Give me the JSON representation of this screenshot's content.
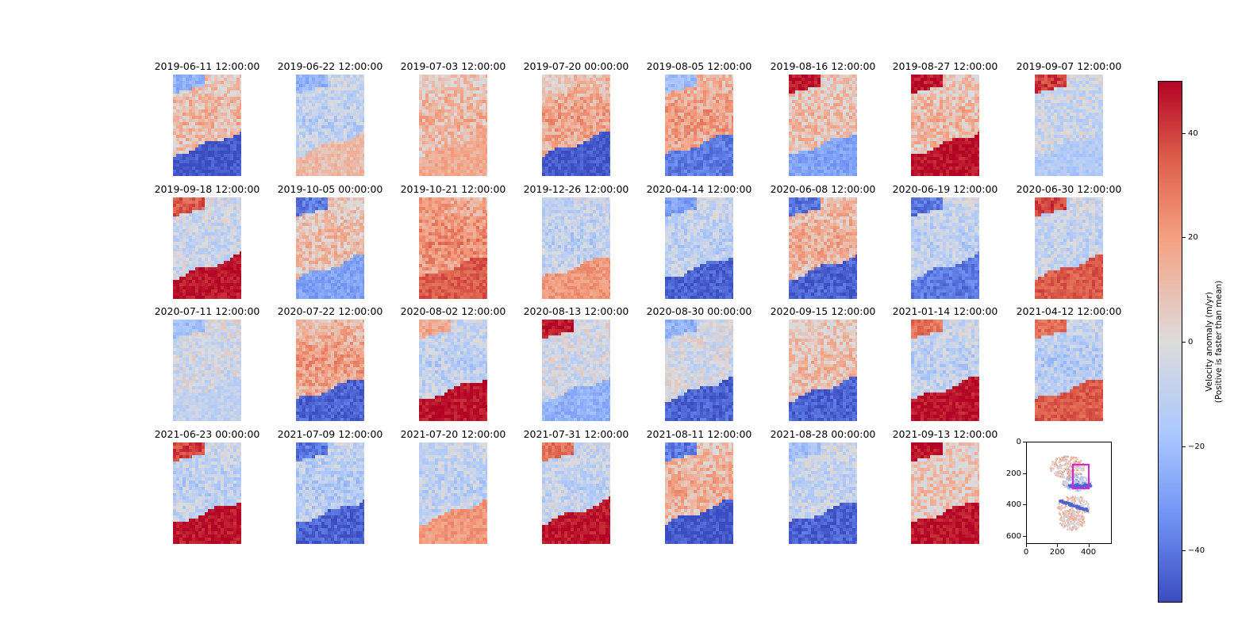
{
  "chart_data": {
    "type": "heatmap",
    "title": "",
    "panel_titles": [
      "2019-06-11 12:00:00",
      "2019-06-22 12:00:00",
      "2019-07-03 12:00:00",
      "2019-07-20 00:00:00",
      "2019-08-05 12:00:00",
      "2019-08-16 12:00:00",
      "2019-08-27 12:00:00",
      "2019-09-07 12:00:00",
      "2019-09-18 12:00:00",
      "2019-10-05 00:00:00",
      "2019-10-21 12:00:00",
      "2019-12-26 12:00:00",
      "2020-04-14 12:00:00",
      "2020-06-08 12:00:00",
      "2020-06-19 12:00:00",
      "2020-06-30 12:00:00",
      "2020-07-11 12:00:00",
      "2020-07-22 12:00:00",
      "2020-08-02 12:00:00",
      "2020-08-13 12:00:00",
      "2020-08-30 00:00:00",
      "2020-09-15 12:00:00",
      "2021-01-14 12:00:00",
      "2021-04-12 12:00:00",
      "2021-06-23 00:00:00",
      "2021-07-09 12:00:00",
      "2021-07-20 12:00:00",
      "2021-07-31 12:00:00",
      "2021-08-11 12:00:00",
      "2021-08-28 00:00:00",
      "2021-09-13 12:00:00"
    ],
    "panels_summary": [
      {
        "center": 12,
        "lower": -48,
        "topleft": -25
      },
      {
        "center": -12,
        "lower": 10,
        "topleft": -25
      },
      {
        "center": 12,
        "lower": 15,
        "topleft": 5
      },
      {
        "center": 18,
        "lower": -48,
        "topleft": 5
      },
      {
        "center": 20,
        "lower": -40,
        "topleft": -20
      },
      {
        "center": 10,
        "lower": -30,
        "topleft": 48
      },
      {
        "center": 12,
        "lower": 48,
        "topleft": 48
      },
      {
        "center": -8,
        "lower": -15,
        "topleft": 40
      },
      {
        "center": -8,
        "lower": 48,
        "topleft": 35
      },
      {
        "center": 10,
        "lower": -30,
        "topleft": -40
      },
      {
        "center": 25,
        "lower": 35,
        "topleft": 20
      },
      {
        "center": -12,
        "lower": 20,
        "topleft": -12
      },
      {
        "center": -12,
        "lower": -45,
        "topleft": -30
      },
      {
        "center": 15,
        "lower": -45,
        "topleft": -40
      },
      {
        "center": -12,
        "lower": -40,
        "topleft": -40
      },
      {
        "center": -10,
        "lower": 35,
        "topleft": 40
      },
      {
        "center": -5,
        "lower": -10,
        "topleft": -20
      },
      {
        "center": 20,
        "lower": -45,
        "topleft": 10
      },
      {
        "center": -12,
        "lower": 48,
        "topleft": 15
      },
      {
        "center": -5,
        "lower": -25,
        "topleft": 48
      },
      {
        "center": -5,
        "lower": -45,
        "topleft": -25
      },
      {
        "center": 10,
        "lower": -45,
        "topleft": 5
      },
      {
        "center": -12,
        "lower": 48,
        "topleft": 30
      },
      {
        "center": -15,
        "lower": 35,
        "topleft": 30
      },
      {
        "center": -12,
        "lower": 48,
        "topleft": 40
      },
      {
        "center": -15,
        "lower": -45,
        "topleft": -40
      },
      {
        "center": -12,
        "lower": 20,
        "topleft": -10
      },
      {
        "center": -10,
        "lower": 48,
        "topleft": 30
      },
      {
        "center": 15,
        "lower": -48,
        "topleft": -40
      },
      {
        "center": -10,
        "lower": -45,
        "topleft": -20
      },
      {
        "center": 8,
        "lower": 48,
        "topleft": 48
      }
    ],
    "overview": {
      "type": "map-inset",
      "xticks": [
        "0",
        "200",
        "400"
      ],
      "yticks": [
        "0",
        "200",
        "400",
        "600"
      ],
      "xlim": [
        0,
        550
      ],
      "ylim": [
        650,
        0
      ],
      "highlight_box_color": "#e020e0"
    },
    "colorbar": {
      "label_line1": "Velocity anomaly (m/yr)",
      "label_line2": "(Positive is faster than mean)",
      "range": [
        -50,
        50
      ],
      "ticks": [
        "40",
        "20",
        "0",
        "−20",
        "−40"
      ],
      "colormap": "coolwarm"
    }
  }
}
